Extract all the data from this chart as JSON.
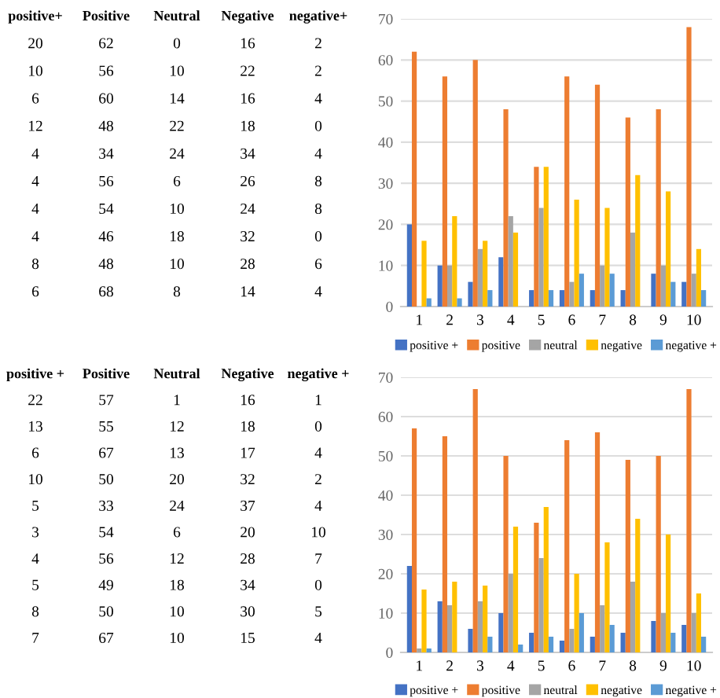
{
  "chart_data": [
    {
      "type": "other",
      "categories": [
        "positive+",
        "Positive",
        "Neutral",
        "Negative",
        "negative+"
      ],
      "annotations": [
        "20",
        "62",
        "0",
        "16",
        "2",
        "10",
        "56",
        "10",
        "22",
        "2",
        "6",
        "60",
        "14",
        "16",
        "4",
        "12",
        "48",
        "22",
        "18",
        "0",
        "4",
        "34",
        "24",
        "34",
        "4",
        "4",
        "56",
        "6",
        "26",
        "8",
        "4",
        "54",
        "10",
        "24",
        "8",
        "4",
        "46",
        "18",
        "32",
        "0",
        "8",
        "48",
        "10",
        "28",
        "6",
        "6",
        "68",
        "8",
        "14",
        "4"
      ]
    },
    {
      "type": "bar",
      "categories": [
        "1",
        "2",
        "3",
        "4",
        "5",
        "6",
        "7",
        "8",
        "9",
        "10"
      ],
      "series": [
        {
          "name": "positive +",
          "color": "#4472c4",
          "values": [
            20,
            10,
            6,
            12,
            4,
            4,
            4,
            4,
            8,
            6
          ]
        },
        {
          "name": "positive",
          "color": "#ed7d31",
          "values": [
            62,
            56,
            60,
            48,
            34,
            56,
            54,
            46,
            48,
            68
          ]
        },
        {
          "name": "neutral",
          "color": "#a5a5a5",
          "values": [
            0,
            10,
            14,
            22,
            24,
            6,
            10,
            18,
            10,
            8
          ]
        },
        {
          "name": "negative",
          "color": "#ffc000",
          "values": [
            16,
            22,
            16,
            18,
            34,
            26,
            24,
            32,
            28,
            14
          ]
        },
        {
          "name": "negative +",
          "color": "#5b9bd5",
          "values": [
            2,
            2,
            4,
            0,
            4,
            8,
            8,
            0,
            6,
            4
          ]
        }
      ],
      "ylim": [
        0,
        70
      ],
      "yticks": [
        0,
        10,
        20,
        30,
        40,
        50,
        60,
        70
      ],
      "grid": "y",
      "legend": "bottom"
    },
    {
      "type": "other",
      "categories": [
        "positive +",
        "Positive",
        "Neutral",
        "Negative",
        "negative +"
      ],
      "annotations": [
        "22",
        "57",
        "1",
        "16",
        "1",
        "13",
        "55",
        "12",
        "18",
        "0",
        "6",
        "67",
        "13",
        "17",
        "4",
        "10",
        "50",
        "20",
        "32",
        "2",
        "5",
        "33",
        "24",
        "37",
        "4",
        "3",
        "54",
        "6",
        "20",
        "10",
        "4",
        "56",
        "12",
        "28",
        "7",
        "5",
        "49",
        "18",
        "34",
        "0",
        "8",
        "50",
        "10",
        "30",
        "5",
        "7",
        "67",
        "10",
        "15",
        "4"
      ]
    },
    {
      "type": "bar",
      "categories": [
        "1",
        "2",
        "3",
        "4",
        "5",
        "6",
        "7",
        "8",
        "9",
        "10"
      ],
      "series": [
        {
          "name": "positive +",
          "color": "#4472c4",
          "values": [
            22,
            13,
            6,
            10,
            5,
            3,
            4,
            5,
            8,
            7
          ]
        },
        {
          "name": "positive",
          "color": "#ed7d31",
          "values": [
            57,
            55,
            67,
            50,
            33,
            54,
            56,
            49,
            50,
            67
          ]
        },
        {
          "name": "neutral",
          "color": "#a5a5a5",
          "values": [
            1,
            12,
            13,
            20,
            24,
            6,
            12,
            18,
            10,
            10
          ]
        },
        {
          "name": "negative",
          "color": "#ffc000",
          "values": [
            16,
            18,
            17,
            32,
            37,
            20,
            28,
            34,
            30,
            15
          ]
        },
        {
          "name": "negative +",
          "color": "#5b9bd5",
          "values": [
            1,
            0,
            4,
            2,
            4,
            10,
            7,
            0,
            5,
            4
          ]
        }
      ],
      "ylim": [
        0,
        70
      ],
      "yticks": [
        0,
        10,
        20,
        30,
        40,
        50,
        60,
        70
      ],
      "grid": "y",
      "legend": "bottom"
    }
  ]
}
